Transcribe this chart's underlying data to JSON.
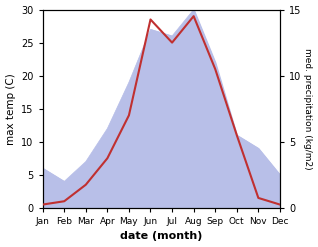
{
  "months": [
    "Jan",
    "Feb",
    "Mar",
    "Apr",
    "May",
    "Jun",
    "Jul",
    "Aug",
    "Sep",
    "Oct",
    "Nov",
    "Dec"
  ],
  "temperature": [
    0.5,
    1.0,
    3.5,
    7.5,
    14.0,
    28.5,
    25.0,
    29.0,
    21.0,
    11.0,
    1.5,
    0.5
  ],
  "precipitation": [
    3.0,
    2.0,
    3.5,
    6.0,
    9.5,
    13.5,
    13.0,
    15.0,
    11.0,
    5.5,
    4.5,
    2.5
  ],
  "temp_color": "#c03030",
  "precip_fill_color": "#b8bfe8",
  "temp_ylim": [
    0,
    30
  ],
  "precip_ylim": [
    0,
    15
  ],
  "xlabel": "date (month)",
  "ylabel_left": "max temp (C)",
  "ylabel_right": "med. precipitation (kg/m2)",
  "temp_yticks": [
    0,
    5,
    10,
    15,
    20,
    25,
    30
  ],
  "precip_yticks": [
    0,
    5,
    10,
    15
  ],
  "figsize": [
    3.18,
    2.47
  ],
  "dpi": 100
}
